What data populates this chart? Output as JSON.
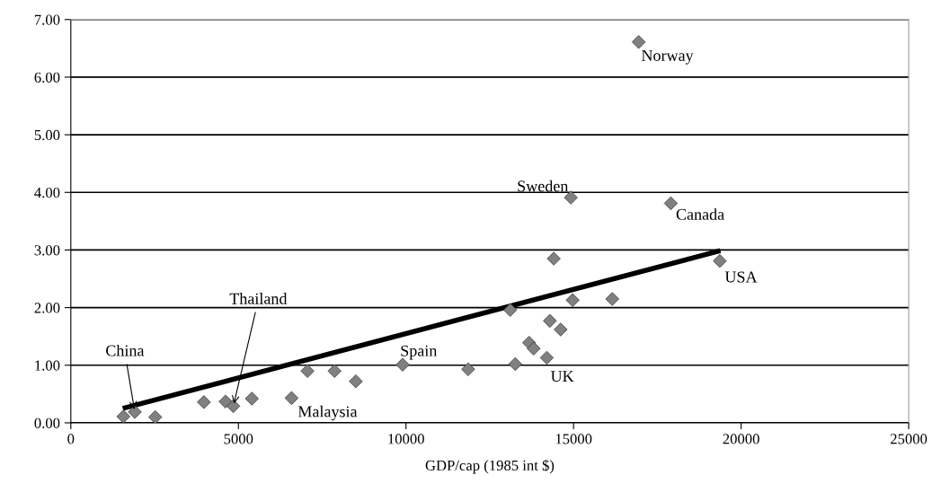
{
  "chart_data": {
    "type": "scatter",
    "xlabel": "GDP/cap (1985 int $)",
    "x": [
      1568,
      1909,
      2518,
      3970,
      4615,
      4848,
      5403,
      6586,
      7061,
      7868,
      8503,
      9901,
      11855,
      13261,
      13110,
      13674,
      13809,
      14202,
      14293,
      14615,
      14973,
      16156,
      14409,
      14919,
      17903,
      19363,
      16944
    ],
    "series": [
      {
        "color": "#808080",
        "marker": "diamond",
        "values": [
          0.11,
          0.19,
          0.1,
          0.36,
          0.37,
          0.29,
          0.42,
          0.43,
          0.9,
          0.9,
          0.72,
          1.01,
          0.93,
          1.02,
          1.96,
          1.39,
          1.29,
          1.13,
          1.77,
          1.62,
          2.13,
          2.15,
          2.85,
          3.91,
          3.81,
          2.81,
          6.61
        ]
      },
      {
        "type": "line",
        "color": "#000000",
        "x": [
          1550,
          19382
        ],
        "values": [
          0.25,
          2.99
        ]
      }
    ],
    "xlim": [
      0,
      25000
    ],
    "xticks": [
      0,
      5000,
      10000,
      15000,
      20000,
      25000
    ],
    "ylim": [
      0,
      7
    ],
    "yticks": [
      {
        "value": 0,
        "label": "0.00"
      },
      {
        "value": 1,
        "label": "1.00"
      },
      {
        "value": 2,
        "label": "2.00"
      },
      {
        "value": 3,
        "label": "3.00"
      },
      {
        "value": 4,
        "label": "4.00"
      },
      {
        "value": 5,
        "label": "5.00"
      },
      {
        "value": 6,
        "label": "6.00"
      },
      {
        "value": 7,
        "label": "7.00"
      }
    ],
    "grid": "y",
    "legend": false,
    "annotations": [
      {
        "text": "Norway",
        "x": 16944,
        "y": 6.61
      },
      {
        "text": "Sweden",
        "x": 14919,
        "y": 3.91
      },
      {
        "text": "Canada",
        "x": 17903,
        "y": 3.81
      },
      {
        "text": "USA",
        "x": 19363,
        "y": 2.81
      },
      {
        "text": "Thailand",
        "x": 4848,
        "y": 0.29
      },
      {
        "text": "China",
        "x": 1909,
        "y": 0.19
      },
      {
        "text": "Spain",
        "x": 9901,
        "y": 1.01
      },
      {
        "text": "UK",
        "x": 14202,
        "y": 1.13
      },
      {
        "text": "Malaysia",
        "x": 6586,
        "y": 0.43
      }
    ]
  }
}
